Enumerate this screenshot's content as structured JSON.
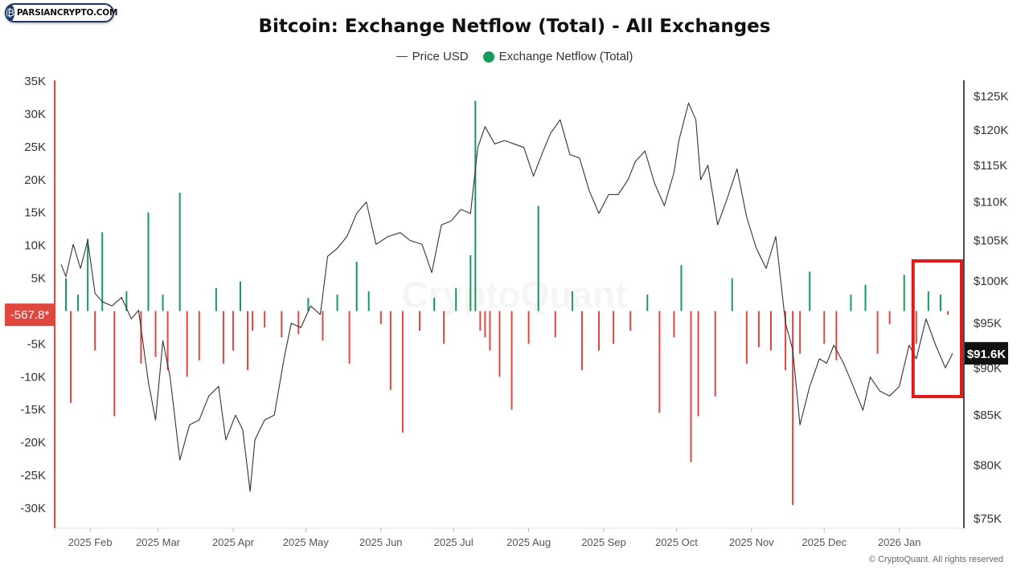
{
  "brand": {
    "logo_text": "PARSIANCRYPTO.COM"
  },
  "chart_data": {
    "type": "bar",
    "title": "Bitcoin: Exchange Netflow (Total) - All Exchanges",
    "legend": [
      {
        "name": "Price USD",
        "color": "#444444",
        "mark": "line"
      },
      {
        "name": "Exchange Netflow (Total)",
        "color": "#159a5a",
        "mark": "dot"
      }
    ],
    "legend_position": "top-center",
    "grid": false,
    "y_left": {
      "ylim": [
        -32000,
        35000
      ],
      "ticks": [
        35000,
        30000,
        25000,
        20000,
        15000,
        10000,
        5000,
        -5000,
        -10000,
        -15000,
        -20000,
        -25000,
        -30000
      ],
      "tick_labels": [
        "35K",
        "30K",
        "25K",
        "20K",
        "15K",
        "10K",
        "5K",
        "-5K",
        "-10K",
        "-15K",
        "-20K",
        "-25K",
        "-30K"
      ],
      "current_value_label": "-567.8*",
      "current_value": -567.8
    },
    "y_right": {
      "scale": "log",
      "ticks": [
        125000,
        120000,
        115000,
        110000,
        105000,
        100000,
        95000,
        90000,
        85000,
        80000,
        75000
      ],
      "tick_labels": [
        "$125K",
        "$120K",
        "$115K",
        "$110K",
        "$105K",
        "$100K",
        "$95K",
        "$90K",
        "$85K",
        "$80K",
        "$75K"
      ],
      "current_value_label": "$91.6K",
      "current_value": 91600
    },
    "x_axis": {
      "range": [
        "2025-01-20",
        "2026-01-23"
      ],
      "tick_labels": [
        "2025 Feb",
        "2025 Mar",
        "2025 Apr",
        "2025 May",
        "2025 Jun",
        "2025 Jul",
        "2025 Aug",
        "2025 Sep",
        "2025 Oct",
        "2025 Nov",
        "2025 Dec",
        "2026 Jan"
      ],
      "tick_dates": [
        "2025-02-01",
        "2025-03-01",
        "2025-04-01",
        "2025-05-01",
        "2025-06-01",
        "2025-07-01",
        "2025-08-01",
        "2025-09-01",
        "2025-10-01",
        "2025-11-01",
        "2025-12-01",
        "2026-01-01"
      ]
    },
    "colors": {
      "inflow": "#159a5a",
      "outflow": "#e0483f",
      "price": "#333333",
      "highlight_box": "#e21a1a"
    },
    "series": [
      {
        "name": "Price USD",
        "x": [
          "2025-01-20",
          "2025-01-22",
          "2025-01-25",
          "2025-01-28",
          "2025-01-31",
          "2025-02-03",
          "2025-02-06",
          "2025-02-10",
          "2025-02-14",
          "2025-02-18",
          "2025-02-21",
          "2025-02-25",
          "2025-02-28",
          "2025-03-03",
          "2025-03-06",
          "2025-03-10",
          "2025-03-14",
          "2025-03-18",
          "2025-03-22",
          "2025-03-26",
          "2025-03-29",
          "2025-04-02",
          "2025-04-05",
          "2025-04-08",
          "2025-04-10",
          "2025-04-14",
          "2025-04-18",
          "2025-04-22",
          "2025-04-25",
          "2025-04-29",
          "2025-05-03",
          "2025-05-07",
          "2025-05-10",
          "2025-05-14",
          "2025-05-18",
          "2025-05-22",
          "2025-05-26",
          "2025-05-30",
          "2025-06-04",
          "2025-06-09",
          "2025-06-13",
          "2025-06-18",
          "2025-06-22",
          "2025-06-26",
          "2025-06-30",
          "2025-07-04",
          "2025-07-08",
          "2025-07-11",
          "2025-07-14",
          "2025-07-18",
          "2025-07-22",
          "2025-07-26",
          "2025-07-30",
          "2025-08-03",
          "2025-08-07",
          "2025-08-10",
          "2025-08-14",
          "2025-08-18",
          "2025-08-22",
          "2025-08-26",
          "2025-08-30",
          "2025-09-03",
          "2025-09-07",
          "2025-09-11",
          "2025-09-14",
          "2025-09-18",
          "2025-09-22",
          "2025-09-26",
          "2025-09-30",
          "2025-10-02",
          "2025-10-06",
          "2025-10-09",
          "2025-10-11",
          "2025-10-14",
          "2025-10-18",
          "2025-10-22",
          "2025-10-26",
          "2025-10-30",
          "2025-11-03",
          "2025-11-07",
          "2025-11-11",
          "2025-11-15",
          "2025-11-18",
          "2025-11-21",
          "2025-11-25",
          "2025-11-29",
          "2025-12-02",
          "2025-12-05",
          "2025-12-09",
          "2025-12-13",
          "2025-12-17",
          "2025-12-20",
          "2025-12-24",
          "2025-12-28",
          "2026-01-01",
          "2026-01-05",
          "2026-01-08",
          "2026-01-12",
          "2026-01-16",
          "2026-01-20",
          "2026-01-23"
        ],
        "y": [
          102000,
          100500,
          104500,
          101500,
          105000,
          98500,
          97500,
          97000,
          98000,
          95500,
          96500,
          88500,
          84500,
          93000,
          89000,
          80500,
          84000,
          84500,
          87000,
          88000,
          82500,
          85000,
          83500,
          77500,
          82500,
          84500,
          85000,
          91000,
          95000,
          94500,
          97000,
          96000,
          103000,
          104000,
          105500,
          108500,
          110000,
          104500,
          105500,
          106000,
          105000,
          104500,
          101000,
          107000,
          107500,
          109000,
          108500,
          117500,
          120500,
          118000,
          118500,
          118000,
          117500,
          113500,
          117000,
          119500,
          121500,
          116500,
          116000,
          111500,
          108500,
          111000,
          111000,
          113000,
          115500,
          117000,
          112500,
          109500,
          114000,
          118500,
          124000,
          121500,
          113000,
          115000,
          107000,
          110500,
          114500,
          108000,
          104000,
          101500,
          105500,
          95000,
          92000,
          84000,
          88000,
          91000,
          90500,
          92500,
          90500,
          88000,
          85500,
          89000,
          87500,
          87000,
          88000,
          92500,
          91000,
          95500,
          92500,
          90000,
          91600
        ]
      },
      {
        "name": "Exchange Netflow (Total)",
        "x": [
          "2025-01-22",
          "2025-01-24",
          "2025-01-27",
          "2025-01-31",
          "2025-02-03",
          "2025-02-06",
          "2025-02-11",
          "2025-02-16",
          "2025-02-22",
          "2025-02-25",
          "2025-02-28",
          "2025-03-03",
          "2025-03-05",
          "2025-03-10",
          "2025-03-13",
          "2025-03-18",
          "2025-03-25",
          "2025-03-28",
          "2025-04-01",
          "2025-04-04",
          "2025-04-07",
          "2025-04-09",
          "2025-04-14",
          "2025-04-21",
          "2025-04-28",
          "2025-05-02",
          "2025-05-08",
          "2025-05-14",
          "2025-05-19",
          "2025-05-22",
          "2025-05-27",
          "2025-06-01",
          "2025-06-05",
          "2025-06-10",
          "2025-06-17",
          "2025-06-23",
          "2025-06-27",
          "2025-07-02",
          "2025-07-08",
          "2025-07-10",
          "2025-07-12",
          "2025-07-14",
          "2025-07-16",
          "2025-07-20",
          "2025-07-25",
          "2025-08-01",
          "2025-08-05",
          "2025-08-12",
          "2025-08-19",
          "2025-08-23",
          "2025-08-30",
          "2025-09-05",
          "2025-09-12",
          "2025-09-19",
          "2025-09-24",
          "2025-09-30",
          "2025-10-03",
          "2025-10-07",
          "2025-10-10",
          "2025-10-17",
          "2025-10-24",
          "2025-10-30",
          "2025-11-04",
          "2025-11-09",
          "2025-11-15",
          "2025-11-18",
          "2025-11-21",
          "2025-11-25",
          "2025-12-01",
          "2025-12-06",
          "2025-12-12",
          "2025-12-18",
          "2025-12-23",
          "2025-12-28",
          "2026-01-03",
          "2026-01-08",
          "2026-01-13",
          "2026-01-18",
          "2026-01-21"
        ],
        "y": [
          5000,
          -14000,
          2500,
          11000,
          -6000,
          12000,
          -16000,
          3000,
          -8000,
          15000,
          -7000,
          2500,
          -9000,
          18000,
          -10000,
          -7500,
          3500,
          -8000,
          -6000,
          4500,
          -9000,
          -3000,
          -2500,
          -4000,
          -3500,
          2000,
          -4500,
          2500,
          -8000,
          7500,
          3000,
          -2000,
          -12000,
          -18500,
          -3000,
          2000,
          -5000,
          3500,
          8500,
          32000,
          -3000,
          -4000,
          -6000,
          -10000,
          -15000,
          -5000,
          16000,
          -4000,
          3000,
          -9000,
          -6000,
          -5000,
          -3000,
          2500,
          -15500,
          -4000,
          7000,
          -23000,
          -16000,
          -13000,
          5000,
          -8000,
          -5500,
          -6000,
          -9000,
          -29500,
          -6500,
          6000,
          -5000,
          -7500,
          2500,
          4000,
          -6500,
          -2000,
          5500,
          -5000,
          3000,
          2500,
          -567.8
        ]
      }
    ],
    "highlight": {
      "shape": "rectangle",
      "from": "2026-01-08",
      "to": "2026-01-23"
    },
    "watermark": "CryptoQuant"
  },
  "footer": {
    "copyright": "© CryptoQuant. All rights reserved"
  }
}
